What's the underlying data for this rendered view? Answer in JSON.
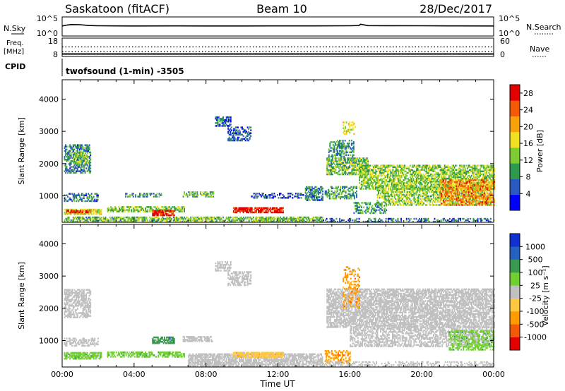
{
  "header": {
    "station": "Saskatoon (fitACF)",
    "beam": "Beam 10",
    "date": "28/Dec/2017"
  },
  "noise_panel": {
    "left_label": "N.Sky",
    "right_label": "N.Search",
    "left_ticks": [
      "10^5",
      "10^0"
    ],
    "right_ticks": [
      "10^5",
      "10^0"
    ]
  },
  "freq_panel": {
    "left_label_line1": "Freq.",
    "left_label_line2": "[MHz]",
    "left_ticks": [
      "18",
      "8"
    ],
    "right_ticks": [
      "60",
      "0"
    ],
    "right_label": "Nave",
    "cpid_label": "CPID"
  },
  "cpid_text": "twofsound (1-min) -3505",
  "time_axis": {
    "label": "Time UT",
    "ticks": [
      "00:00",
      "04:00",
      "08:00",
      "12:00",
      "16:00",
      "20:00",
      "00:00"
    ]
  },
  "colors": {
    "power": [
      "#0000ff",
      "#2a5ac0",
      "#2f9a4f",
      "#7ecb32",
      "#f0e020",
      "#f7a10b",
      "#f35a07",
      "#e20000"
    ],
    "velocity": [
      "#e20000",
      "#f35a07",
      "#ff9a00",
      "#ffc840",
      "#c0c0c0",
      "#70d030",
      "#3a9a50",
      "#2660c0",
      "#1030d0"
    ],
    "ground_scatter": "#c0c0c0"
  },
  "chart_data": [
    {
      "type": "line",
      "name": "noise",
      "x_range_hours": [
        0,
        24
      ],
      "y_scale": "log",
      "ylim_left": [
        1,
        100000
      ],
      "ylim_right": [
        1,
        100000
      ],
      "series": [
        {
          "x": [
            0,
            0.3,
            0.5,
            1,
            1.5,
            2,
            3,
            4,
            6,
            8,
            10,
            12,
            14,
            16,
            16.5,
            16.6,
            17,
            18,
            20,
            22,
            24
          ],
          "y": [
            1000,
            2500,
            4000,
            3500,
            1500,
            1200,
            1100,
            1000,
            1050,
            1000,
            1000,
            1050,
            1100,
            1200,
            1500,
            5000,
            1400,
            1300,
            1200,
            1100,
            1000
          ]
        }
      ]
    },
    {
      "type": "line",
      "name": "frequency",
      "x_range_hours": [
        0,
        24
      ],
      "ylim_left": [
        8,
        18
      ],
      "ylim_right": [
        0,
        60
      ],
      "series": [
        {
          "x": [
            0,
            24
          ],
          "y": [
            10.4,
            10.4
          ]
        },
        {
          "x": [
            0,
            24
          ],
          "y": [
            14.6,
            14.6
          ]
        },
        {
          "x": [
            0,
            24
          ],
          "y": [
            8.3,
            8.3
          ]
        }
      ]
    },
    {
      "type": "heatmap",
      "name": "power",
      "x_range_hours": [
        0,
        24
      ],
      "ylabel": "Slant Range [km]",
      "ylim": [
        180,
        4600
      ],
      "yticks": [
        1000,
        2000,
        3000,
        4000
      ],
      "colorbar": {
        "label": "Power [dB]",
        "ticks": [
          4,
          8,
          12,
          16,
          20,
          24,
          28
        ],
        "range": [
          0,
          30
        ]
      },
      "patches": [
        {
          "t0": 0.1,
          "t1": 1.6,
          "r0": 1700,
          "r1": 2600,
          "v": 8,
          "d": 0.55
        },
        {
          "t0": 0.6,
          "t1": 1.4,
          "r0": 1950,
          "r1": 2350,
          "v": 13,
          "d": 0.5
        },
        {
          "t0": 0.1,
          "t1": 2.0,
          "r0": 820,
          "r1": 1080,
          "v": 8,
          "d": 0.5
        },
        {
          "t0": 0.1,
          "t1": 2.2,
          "r0": 420,
          "r1": 600,
          "v": 16,
          "d": 0.75
        },
        {
          "t0": 0.2,
          "t1": 1.6,
          "r0": 470,
          "r1": 560,
          "v": 27,
          "d": 0.6
        },
        {
          "t0": 0.1,
          "t1": 14.5,
          "r0": 180,
          "r1": 330,
          "v": 12,
          "d": 0.7
        },
        {
          "t0": 3.5,
          "t1": 5.5,
          "r0": 960,
          "r1": 1060,
          "v": 9,
          "d": 0.5
        },
        {
          "t0": 2.5,
          "t1": 6.8,
          "r0": 500,
          "r1": 640,
          "v": 12,
          "d": 0.6
        },
        {
          "t0": 5.0,
          "t1": 6.2,
          "r0": 380,
          "r1": 520,
          "v": 28,
          "d": 0.75
        },
        {
          "t0": 6.7,
          "t1": 8.4,
          "r0": 960,
          "r1": 1120,
          "v": 12,
          "d": 0.55
        },
        {
          "t0": 8.5,
          "t1": 9.4,
          "r0": 3150,
          "r1": 3450,
          "v": 6,
          "d": 0.6
        },
        {
          "t0": 9.2,
          "t1": 10.5,
          "r0": 2700,
          "r1": 3150,
          "v": 6,
          "d": 0.5
        },
        {
          "t0": 9.5,
          "t1": 12.3,
          "r0": 470,
          "r1": 650,
          "v": 28,
          "d": 0.85
        },
        {
          "t0": 10.5,
          "t1": 14.0,
          "r0": 920,
          "r1": 1080,
          "v": 5,
          "d": 0.4
        },
        {
          "t0": 13.5,
          "t1": 14.5,
          "r0": 850,
          "r1": 1300,
          "v": 8,
          "d": 0.5
        },
        {
          "t0": 14.7,
          "t1": 17.0,
          "r0": 1650,
          "r1": 2150,
          "v": 12,
          "d": 0.7
        },
        {
          "t0": 14.8,
          "t1": 16.2,
          "r0": 2200,
          "r1": 2700,
          "v": 9,
          "d": 0.45
        },
        {
          "t0": 15.6,
          "t1": 16.3,
          "r0": 2900,
          "r1": 3300,
          "v": 18,
          "d": 0.35
        },
        {
          "t0": 16.5,
          "t1": 24.0,
          "r0": 1200,
          "r1": 1950,
          "v": 13,
          "d": 0.65
        },
        {
          "t0": 17.5,
          "t1": 23.8,
          "r0": 700,
          "r1": 1200,
          "v": 14,
          "d": 0.55
        },
        {
          "t0": 21.0,
          "t1": 24.0,
          "r0": 700,
          "r1": 1500,
          "v": 22,
          "d": 0.55
        },
        {
          "t0": 14.6,
          "t1": 16.4,
          "r0": 900,
          "r1": 1300,
          "v": 10,
          "d": 0.45
        },
        {
          "t0": 16.2,
          "t1": 18.0,
          "r0": 450,
          "r1": 800,
          "v": 10,
          "d": 0.45
        },
        {
          "t0": 14.5,
          "t1": 24.0,
          "r0": 180,
          "r1": 300,
          "v": 7,
          "d": 0.4
        }
      ]
    },
    {
      "type": "heatmap",
      "name": "velocity",
      "x_range_hours": [
        0,
        24
      ],
      "ylabel": "Slant Range [km]",
      "ylim": [
        180,
        4600
      ],
      "yticks": [
        1000,
        2000,
        3000,
        4000
      ],
      "colorbar": {
        "label": "Velocity [m s⁻¹]",
        "ticks": [
          1000,
          500,
          100,
          25,
          -25,
          -100,
          -500,
          -1000
        ]
      },
      "patches": [
        {
          "t0": 0.1,
          "t1": 1.6,
          "r0": 1700,
          "r1": 2600,
          "c": "gs",
          "d": 0.6
        },
        {
          "t0": 0.1,
          "t1": 2.0,
          "r0": 820,
          "r1": 1080,
          "c": "gs",
          "d": 0.5
        },
        {
          "t0": 0.1,
          "t1": 2.2,
          "r0": 420,
          "r1": 640,
          "c": 5,
          "d": 0.75
        },
        {
          "t0": 2.5,
          "t1": 6.8,
          "r0": 480,
          "r1": 640,
          "c": 5,
          "d": 0.6
        },
        {
          "t0": 5.0,
          "t1": 6.2,
          "r0": 900,
          "r1": 1100,
          "c": 6,
          "d": 0.7
        },
        {
          "t0": 6.7,
          "t1": 8.4,
          "r0": 960,
          "r1": 1120,
          "c": "gs",
          "d": 0.55
        },
        {
          "t0": 7.0,
          "t1": 14.5,
          "r0": 200,
          "r1": 600,
          "c": "gs",
          "d": 0.75
        },
        {
          "t0": 9.5,
          "t1": 12.3,
          "r0": 470,
          "r1": 650,
          "c": 3,
          "d": 0.8
        },
        {
          "t0": 8.5,
          "t1": 9.4,
          "r0": 3150,
          "r1": 3450,
          "c": "gs",
          "d": 0.6
        },
        {
          "t0": 9.2,
          "t1": 10.5,
          "r0": 2700,
          "r1": 3150,
          "c": "gs",
          "d": 0.5
        },
        {
          "t0": 14.7,
          "t1": 24.0,
          "r0": 1400,
          "r1": 2600,
          "c": "gs",
          "d": 0.7
        },
        {
          "t0": 16.0,
          "t1": 24.0,
          "r0": 800,
          "r1": 1400,
          "c": "gs",
          "d": 0.55
        },
        {
          "t0": 15.6,
          "t1": 16.5,
          "r0": 2000,
          "r1": 3300,
          "c": 2,
          "d": 0.3
        },
        {
          "t0": 21.5,
          "t1": 24.0,
          "r0": 700,
          "r1": 1300,
          "c": 5,
          "d": 0.45
        },
        {
          "t0": 14.6,
          "t1": 16.0,
          "r0": 300,
          "r1": 700,
          "c": 2,
          "d": 0.4
        },
        {
          "t0": 14.5,
          "t1": 24.0,
          "r0": 180,
          "r1": 320,
          "c": "gs",
          "d": 0.35
        }
      ]
    }
  ]
}
